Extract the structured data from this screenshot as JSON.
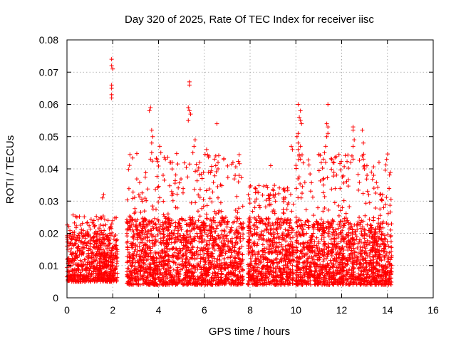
{
  "chart_data": {
    "type": "scatter",
    "title": "Day 320 of 2025, Rate Of TEC Index for receiver iisc",
    "xlabel": "GPS time / hours",
    "ylabel": "ROTI / TECUs",
    "xlim": [
      0,
      16
    ],
    "ylim": [
      0,
      0.08
    ],
    "xticks": [
      0,
      2,
      4,
      6,
      8,
      10,
      12,
      14,
      16
    ],
    "xtick_labels": [
      "0",
      "2",
      "4",
      "6",
      "8",
      "10",
      "12",
      "14",
      "16"
    ],
    "yticks": [
      0,
      0.01,
      0.02,
      0.03,
      0.04,
      0.05,
      0.06,
      0.07,
      0.08
    ],
    "ytick_labels": [
      "0",
      "0.01",
      "0.02",
      "0.03",
      "0.04",
      "0.05",
      "0.06",
      "0.07",
      "0.08"
    ],
    "grid": true,
    "marker": "plus",
    "color": "#ff0000",
    "series": [
      {
        "name": "ROTI",
        "segments": [
          {
            "x_range": [
              0.0,
              2.2
            ],
            "y_base": [
              0.005,
              0.02
            ],
            "y_max": 0.026
          },
          {
            "x_range": [
              2.6,
              7.7
            ],
            "y_base": [
              0.004,
              0.025
            ],
            "y_max": 0.045
          },
          {
            "x_range": [
              7.9,
              9.9
            ],
            "y_base": [
              0.004,
              0.025
            ],
            "y_max": 0.035
          },
          {
            "x_range": [
              10.0,
              14.2
            ],
            "y_base": [
              0.004,
              0.024
            ],
            "y_max": 0.045
          }
        ],
        "peaks": [
          {
            "x": 1.95,
            "y": 0.074
          },
          {
            "x": 1.95,
            "y": 0.072
          },
          {
            "x": 2.0,
            "y": 0.071
          },
          {
            "x": 1.95,
            "y": 0.066
          },
          {
            "x": 1.95,
            "y": 0.065
          },
          {
            "x": 1.95,
            "y": 0.063
          },
          {
            "x": 1.95,
            "y": 0.062
          },
          {
            "x": 1.6,
            "y": 0.032
          },
          {
            "x": 1.55,
            "y": 0.031
          },
          {
            "x": 3.6,
            "y": 0.058
          },
          {
            "x": 3.65,
            "y": 0.059
          },
          {
            "x": 3.7,
            "y": 0.052
          },
          {
            "x": 3.75,
            "y": 0.05
          },
          {
            "x": 3.7,
            "y": 0.048
          },
          {
            "x": 3.7,
            "y": 0.045
          },
          {
            "x": 3.65,
            "y": 0.043
          },
          {
            "x": 4.05,
            "y": 0.047
          },
          {
            "x": 4.1,
            "y": 0.045
          },
          {
            "x": 4.3,
            "y": 0.043
          },
          {
            "x": 4.5,
            "y": 0.042
          },
          {
            "x": 4.6,
            "y": 0.042
          },
          {
            "x": 5.35,
            "y": 0.067
          },
          {
            "x": 5.35,
            "y": 0.066
          },
          {
            "x": 5.3,
            "y": 0.059
          },
          {
            "x": 5.35,
            "y": 0.058
          },
          {
            "x": 5.4,
            "y": 0.057
          },
          {
            "x": 5.3,
            "y": 0.055
          },
          {
            "x": 5.6,
            "y": 0.049
          },
          {
            "x": 5.55,
            "y": 0.047
          },
          {
            "x": 5.5,
            "y": 0.045
          },
          {
            "x": 5.8,
            "y": 0.042
          },
          {
            "x": 6.1,
            "y": 0.046
          },
          {
            "x": 6.2,
            "y": 0.044
          },
          {
            "x": 6.55,
            "y": 0.054
          },
          {
            "x": 6.5,
            "y": 0.044
          },
          {
            "x": 6.45,
            "y": 0.043
          },
          {
            "x": 6.6,
            "y": 0.042
          },
          {
            "x": 6.5,
            "y": 0.041
          },
          {
            "x": 6.6,
            "y": 0.04
          },
          {
            "x": 8.9,
            "y": 0.041
          },
          {
            "x": 9.8,
            "y": 0.047
          },
          {
            "x": 9.85,
            "y": 0.046
          },
          {
            "x": 10.1,
            "y": 0.06
          },
          {
            "x": 10.2,
            "y": 0.058
          },
          {
            "x": 10.15,
            "y": 0.056
          },
          {
            "x": 10.2,
            "y": 0.055
          },
          {
            "x": 10.25,
            "y": 0.054
          },
          {
            "x": 10.1,
            "y": 0.051
          },
          {
            "x": 10.05,
            "y": 0.05
          },
          {
            "x": 10.1,
            "y": 0.048
          },
          {
            "x": 10.2,
            "y": 0.047
          },
          {
            "x": 10.1,
            "y": 0.046
          },
          {
            "x": 10.15,
            "y": 0.044
          },
          {
            "x": 10.2,
            "y": 0.043
          },
          {
            "x": 11.4,
            "y": 0.06
          },
          {
            "x": 11.35,
            "y": 0.054
          },
          {
            "x": 11.4,
            "y": 0.053
          },
          {
            "x": 11.4,
            "y": 0.051
          },
          {
            "x": 11.35,
            "y": 0.05
          },
          {
            "x": 11.3,
            "y": 0.047
          },
          {
            "x": 11.25,
            "y": 0.045
          },
          {
            "x": 11.2,
            "y": 0.043
          },
          {
            "x": 11.3,
            "y": 0.042
          },
          {
            "x": 12.5,
            "y": 0.053
          },
          {
            "x": 12.5,
            "y": 0.052
          },
          {
            "x": 12.55,
            "y": 0.049
          },
          {
            "x": 12.5,
            "y": 0.047
          },
          {
            "x": 12.45,
            "y": 0.044
          },
          {
            "x": 12.5,
            "y": 0.043
          },
          {
            "x": 12.4,
            "y": 0.042
          },
          {
            "x": 12.9,
            "y": 0.052
          },
          {
            "x": 12.95,
            "y": 0.048
          },
          {
            "x": 12.9,
            "y": 0.044
          },
          {
            "x": 12.95,
            "y": 0.043
          },
          {
            "x": 13.0,
            "y": 0.041
          },
          {
            "x": 13.0,
            "y": 0.04
          },
          {
            "x": 13.3,
            "y": 0.039
          },
          {
            "x": 13.4,
            "y": 0.038
          }
        ]
      }
    ]
  }
}
